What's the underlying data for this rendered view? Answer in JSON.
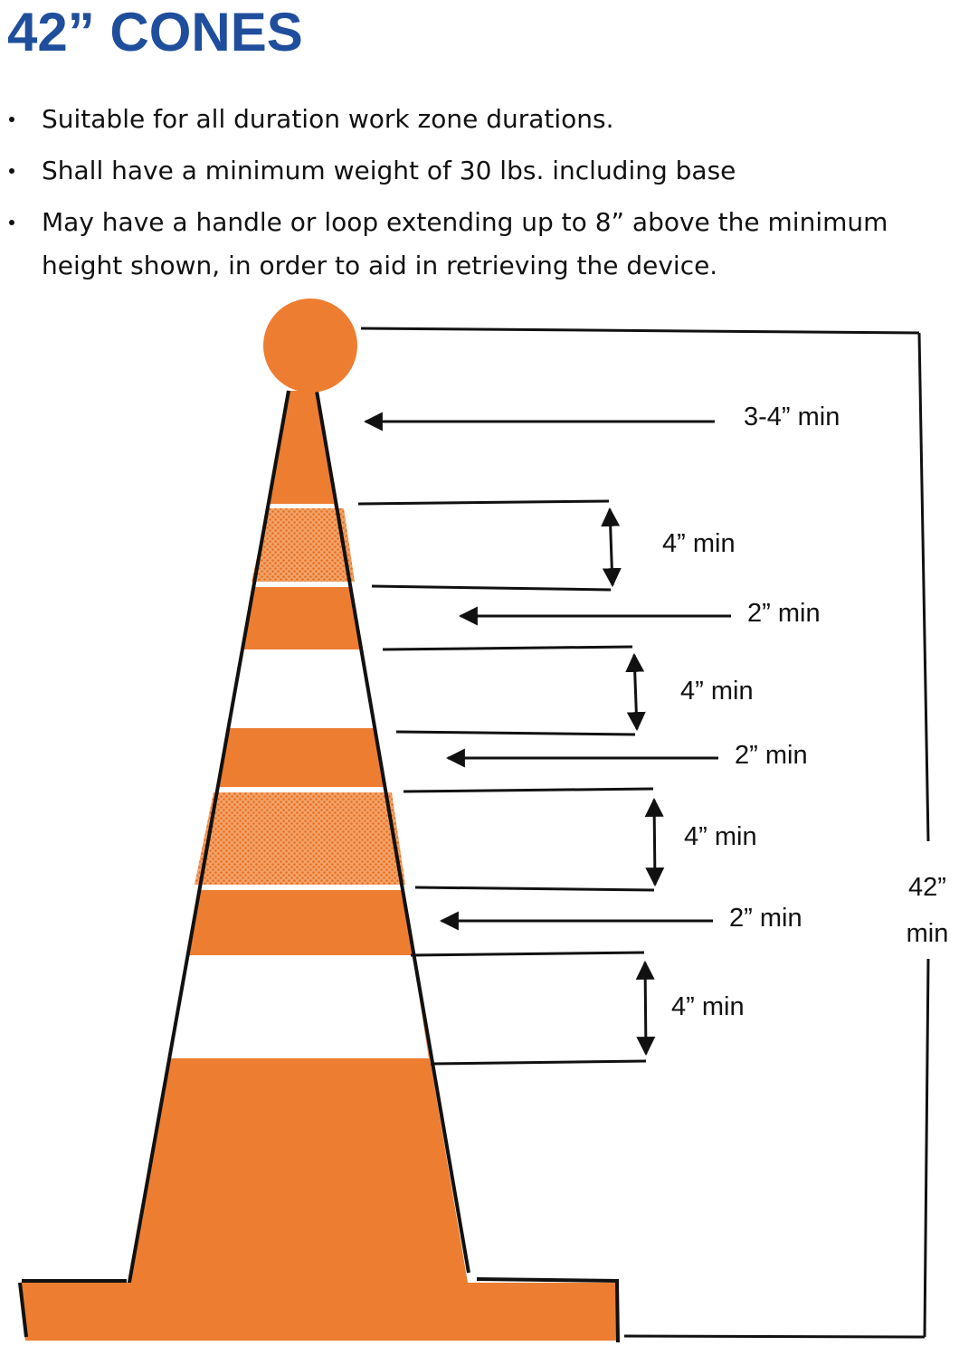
{
  "title": "42” CONES",
  "bullets": [
    {
      "lines": [
        "Suitable for all duration work zone durations."
      ]
    },
    {
      "lines": [
        "Shall have a minimum weight of 30 lbs. including base"
      ]
    },
    {
      "lines": [
        "May have a handle or loop extending up to 8” above the minimum",
        "height shown, in order to aid in retrieving the device."
      ]
    }
  ],
  "diagram": {
    "labels": {
      "top_band": "3-4” min",
      "stripe_1": "4” min",
      "gap_1": "2” min",
      "stripe_2": "4” min",
      "gap_2": "2” min",
      "stripe_3": "4” min",
      "gap_3": "2” min",
      "stripe_4": "4” min",
      "total_line1": "42”",
      "total_line2": "min"
    },
    "colors": {
      "cone_orange": "#ed7d31",
      "reflective_stripe": "#ed7d31",
      "white_stripe": "#ffffff",
      "line": "#111111",
      "title_blue": "#1f4e9c"
    }
  }
}
